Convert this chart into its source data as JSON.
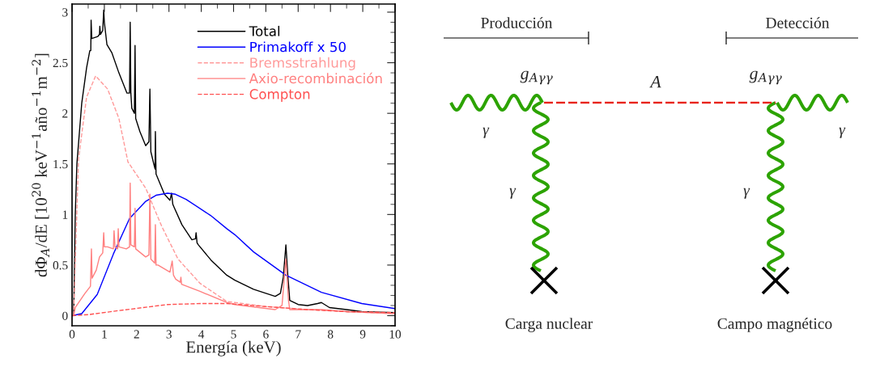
{
  "chart_data": [
    {
      "type": "line",
      "xlabel": "Energía (keV)",
      "ylabel": "dΦ$_{A}$/dE [10$^{20}$ keV$^{−1}$año$^{−1}$m$^{−2}$]",
      "xlim": [
        0,
        10
      ],
      "ylim": [
        -0.1,
        3.08
      ],
      "xticks": [
        0,
        1,
        2,
        3,
        4,
        5,
        6,
        7,
        8,
        9,
        10
      ],
      "yticks": [
        0,
        0.5,
        1,
        1.5,
        2,
        2.5,
        3
      ],
      "legend": "top right",
      "grid": false,
      "series": [
        {
          "name": "Total",
          "color": "#000000",
          "line_style": "solid",
          "x": [
            0.05,
            0.1,
            0.15,
            0.3,
            0.45,
            0.55,
            0.58,
            0.59,
            0.61,
            0.8,
            0.85,
            0.86,
            0.88,
            0.95,
            0.98,
            1.0,
            1.08,
            1.23,
            1.45,
            1.7,
            1.78,
            1.8,
            1.82,
            1.85,
            1.93,
            1.95,
            1.97,
            2.1,
            2.28,
            2.38,
            2.41,
            2.44,
            2.53,
            2.57,
            2.58,
            2.6,
            2.86,
            3.03,
            3.08,
            3.12,
            3.16,
            3.4,
            3.71,
            3.82,
            3.84,
            3.87,
            3.91,
            4.3,
            4.79,
            5.04,
            5.62,
            6.29,
            6.45,
            6.54,
            6.62,
            6.68,
            6.74,
            7.0,
            7.29,
            7.6,
            7.72,
            7.97,
            8.5,
            8.97,
            9.5,
            10
          ],
          "values": [
            0,
            1.0,
            1.5,
            2.1,
            2.45,
            2.62,
            2.62,
            2.92,
            2.74,
            2.76,
            2.78,
            2.86,
            2.78,
            2.82,
            3.02,
            2.9,
            2.68,
            2.6,
            2.4,
            2.2,
            2.2,
            2.9,
            2.2,
            2.05,
            2.0,
            2.67,
            1.95,
            1.82,
            1.68,
            1.72,
            2.24,
            1.62,
            1.5,
            1.45,
            1.82,
            1.4,
            1.2,
            1.14,
            1.21,
            1.1,
            1.07,
            0.9,
            0.75,
            0.76,
            0.82,
            0.72,
            0.7,
            0.55,
            0.4,
            0.35,
            0.26,
            0.19,
            0.22,
            0.38,
            0.7,
            0.4,
            0.15,
            0.11,
            0.1,
            0.12,
            0.13,
            0.08,
            0.06,
            0.04,
            0.035,
            0.03
          ]
        },
        {
          "name": "Primakoff x 50",
          "color": "#0000ff",
          "line_style": "solid",
          "x": [
            0,
            0.3,
            0.78,
            1.28,
            1.78,
            2.28,
            2.6,
            2.96,
            3.2,
            3.53,
            4.29,
            4.79,
            5.04,
            5.62,
            6.62,
            7.72,
            8.97,
            10
          ],
          "values": [
            0,
            0.02,
            0.21,
            0.61,
            0.96,
            1.13,
            1.19,
            1.21,
            1.2,
            1.15,
            0.99,
            0.86,
            0.8,
            0.63,
            0.4,
            0.23,
            0.12,
            0.07
          ]
        },
        {
          "name": "Bremsstrahlung",
          "color": "#ff9999",
          "line_style": "dashed",
          "x": [
            0.05,
            0.2,
            0.45,
            0.73,
            1.1,
            1.45,
            1.73,
            2.28,
            2.78,
            3.28,
            3.96,
            4.79,
            5.04,
            6,
            7.29,
            8.5,
            10
          ],
          "values": [
            0,
            1.55,
            2.16,
            2.37,
            2.24,
            1.95,
            1.52,
            1.26,
            0.88,
            0.56,
            0.32,
            0.14,
            0.13,
            0.09,
            0.06,
            0.04,
            0.02
          ]
        },
        {
          "name": "Axio-recombinación",
          "color": "#ff8080",
          "line_style": "solid",
          "x": [
            0.05,
            0.1,
            0.4,
            0.57,
            0.6,
            0.62,
            0.75,
            0.85,
            0.95,
            0.98,
            1.0,
            1.1,
            1.28,
            1.3,
            1.33,
            1.41,
            1.43,
            1.45,
            1.68,
            1.78,
            1.8,
            1.82,
            1.93,
            1.95,
            1.97,
            2.28,
            2.38,
            2.41,
            2.44,
            2.56,
            2.58,
            2.6,
            2.66,
            3.03,
            3.1,
            3.14,
            3.21,
            3.35,
            3.37,
            3.39,
            3.96,
            4.79,
            5.04,
            6.29,
            6.5,
            6.62,
            6.7,
            6.74,
            7.72,
            8.5,
            10
          ],
          "values": [
            0,
            0.08,
            0.22,
            0.29,
            0.66,
            0.37,
            0.45,
            0.58,
            0.62,
            0.82,
            0.68,
            0.68,
            0.66,
            0.84,
            0.68,
            0.66,
            0.86,
            0.68,
            0.66,
            0.68,
            1.31,
            0.7,
            0.68,
            1.06,
            0.66,
            0.58,
            0.6,
            1.2,
            0.56,
            0.52,
            0.9,
            0.5,
            0.5,
            0.43,
            0.54,
            0.4,
            0.36,
            0.33,
            0.38,
            0.31,
            0.24,
            0.13,
            0.11,
            0.06,
            0.1,
            0.56,
            0.15,
            0.06,
            0.06,
            0.04,
            0.02
          ]
        },
        {
          "name": "Compton",
          "color": "#ff5050",
          "line_style": "dashed",
          "x": [
            0,
            0.5,
            1.45,
            2.96,
            4,
            4.79,
            6,
            7.29,
            8.5,
            10
          ],
          "values": [
            0,
            0.01,
            0.05,
            0.11,
            0.12,
            0.12,
            0.09,
            0.06,
            0.04,
            0.03
          ]
        }
      ]
    },
    {
      "type": "other",
      "annotations": [
        "Producción",
        "Detección",
        "g$_{Aγγ}$",
        "g$_{Aγγ}$",
        "A",
        "γ",
        "γ",
        "γ",
        "γ",
        "Carga nuclear",
        "Campo magnético"
      ]
    }
  ]
}
